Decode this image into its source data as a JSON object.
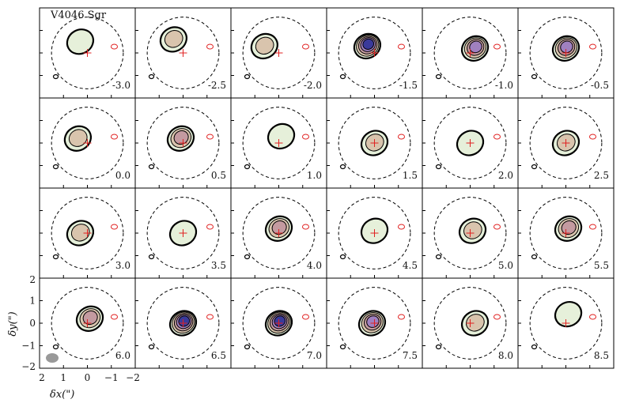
{
  "chart_data": {
    "type": "channel-map",
    "title": "V4046 Sgr",
    "panel_label_unit": "km/s",
    "velocities": [
      "-3.0",
      "-2.5",
      "-2.0",
      "-1.5",
      "-1.0",
      "-0.5",
      "0.0",
      "0.5",
      "1.0",
      "1.5",
      "2.0",
      "2.5",
      "3.0",
      "3.5",
      "4.0",
      "4.5",
      "5.0",
      "5.5",
      "6.0",
      "6.5",
      "7.0",
      "7.5",
      "8.0",
      "8.5"
    ],
    "xlabel": "δx(\")",
    "ylabel": "δy(\")",
    "xlim": [
      2,
      -2
    ],
    "ylim": [
      -2,
      2
    ],
    "xticks": [
      "2",
      "1",
      "0",
      "−1",
      "−2"
    ],
    "yticks": [
      "2",
      "1",
      "0",
      "−1",
      "−2"
    ],
    "grid": false,
    "dashed_circle_radius_arcsec": 1.5,
    "beam_shown": true,
    "colors": {
      "contour": "#000000",
      "negative_contour": "#e02020",
      "marker": "#e02020",
      "fill_levels": [
        "#e6f0da",
        "#d9c4ad",
        "#c49aa0",
        "#a080c0",
        "#3a3a9a"
      ]
    },
    "emission": [
      {
        "x": 0.3,
        "y": 0.5,
        "peak": 1
      },
      {
        "x": 0.4,
        "y": 0.6,
        "peak": 2
      },
      {
        "x": 0.6,
        "y": 0.3,
        "peak": 2
      },
      {
        "x": 0.3,
        "y": 0.3,
        "peak": 5
      },
      {
        "x": -0.2,
        "y": 0.2,
        "peak": 4
      },
      {
        "x": 0.0,
        "y": 0.2,
        "peak": 4
      },
      {
        "x": 0.4,
        "y": 0.2,
        "peak": 2
      },
      {
        "x": 0.1,
        "y": 0.2,
        "peak": 3
      },
      {
        "x": -0.1,
        "y": 0.3,
        "peak": 1
      },
      {
        "x": 0.0,
        "y": 0.0,
        "peak": 2
      },
      {
        "x": 0.0,
        "y": 0.0,
        "peak": 1
      },
      {
        "x": 0.0,
        "y": 0.0,
        "peak": 2
      },
      {
        "x": 0.3,
        "y": 0.0,
        "peak": 2
      },
      {
        "x": 0.0,
        "y": 0.0,
        "peak": 1
      },
      {
        "x": 0.0,
        "y": 0.2,
        "peak": 3
      },
      {
        "x": 0.0,
        "y": 0.1,
        "peak": 1
      },
      {
        "x": -0.1,
        "y": 0.1,
        "peak": 2
      },
      {
        "x": -0.1,
        "y": 0.2,
        "peak": 3
      },
      {
        "x": -0.1,
        "y": 0.2,
        "peak": 3
      },
      {
        "x": 0.0,
        "y": 0.0,
        "peak": 5
      },
      {
        "x": 0.0,
        "y": 0.0,
        "peak": 5
      },
      {
        "x": 0.1,
        "y": 0.0,
        "peak": 4
      },
      {
        "x": -0.2,
        "y": 0.0,
        "peak": 2
      },
      {
        "x": -0.1,
        "y": 0.4,
        "peak": 1
      }
    ]
  }
}
